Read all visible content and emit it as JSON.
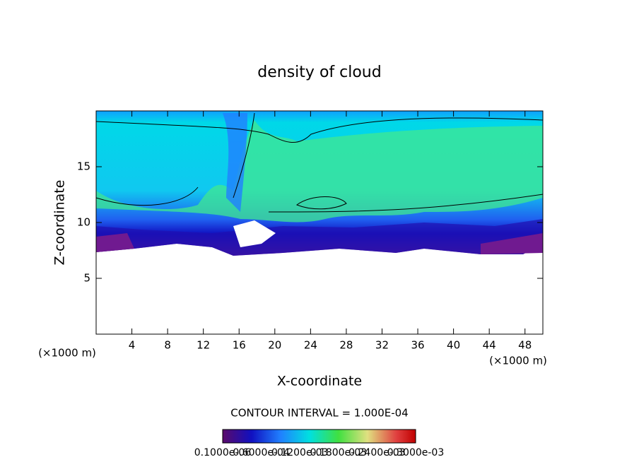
{
  "chart_data": {
    "type": "contour",
    "title": "density of cloud",
    "x_label": "X-coordinate",
    "y_label": "Z-coordinate",
    "x_unit_left": "(×1000 m)",
    "x_unit_right": "(×1000 m)",
    "contour_interval": "CONTOUR INTERVAL = 1.000E-04",
    "xlim": [
      0,
      50
    ],
    "ylim": [
      0,
      20
    ],
    "xticks": [
      4,
      8,
      12,
      16,
      20,
      24,
      28,
      32,
      36,
      40,
      44,
      48
    ],
    "yticks": [
      5,
      10,
      15
    ],
    "colorbar_labels": [
      "0.1000e-06",
      "0.6000e-04",
      "0.1200e-03",
      "0.1800e-03",
      "0.2400e-03",
      "0.3000e-03"
    ]
  }
}
